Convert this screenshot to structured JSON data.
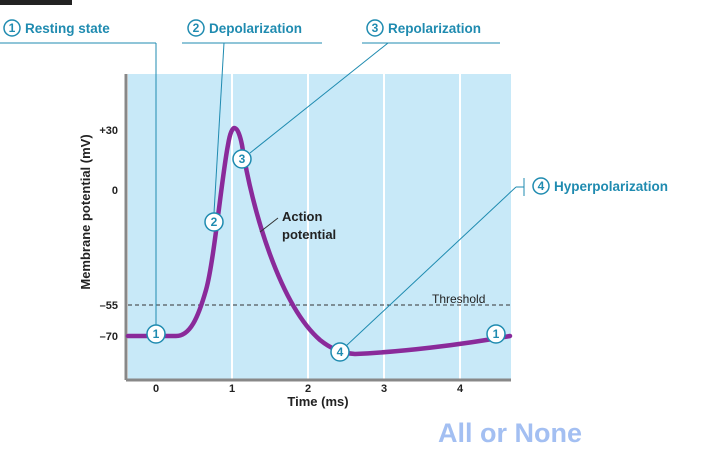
{
  "diagram": {
    "stages": {
      "resting": {
        "num": "1",
        "label": "Resting state"
      },
      "depolarization": {
        "num": "2",
        "label": "Depolarization"
      },
      "repolarization": {
        "num": "3",
        "label": "Repolarization"
      },
      "hyperpolarization": {
        "num": "4",
        "label": "Hyperpolarization"
      }
    },
    "axes": {
      "y_title": "Membrane potential (mV)",
      "x_title": "Time (ms)",
      "y_ticks": [
        "+30",
        "0",
        "–55",
        "–70"
      ],
      "x_ticks": [
        "0",
        "1",
        "2",
        "3",
        "4"
      ]
    },
    "annotations": {
      "action_line1": "Action",
      "action_line2": "potential",
      "threshold": "Threshold"
    },
    "colors": {
      "plot_bg": "#c8e9f8",
      "curve": "#8a2a9a",
      "callout": "#1f8bb0",
      "footer": "#a3bff2"
    }
  },
  "footer": "All or None"
}
